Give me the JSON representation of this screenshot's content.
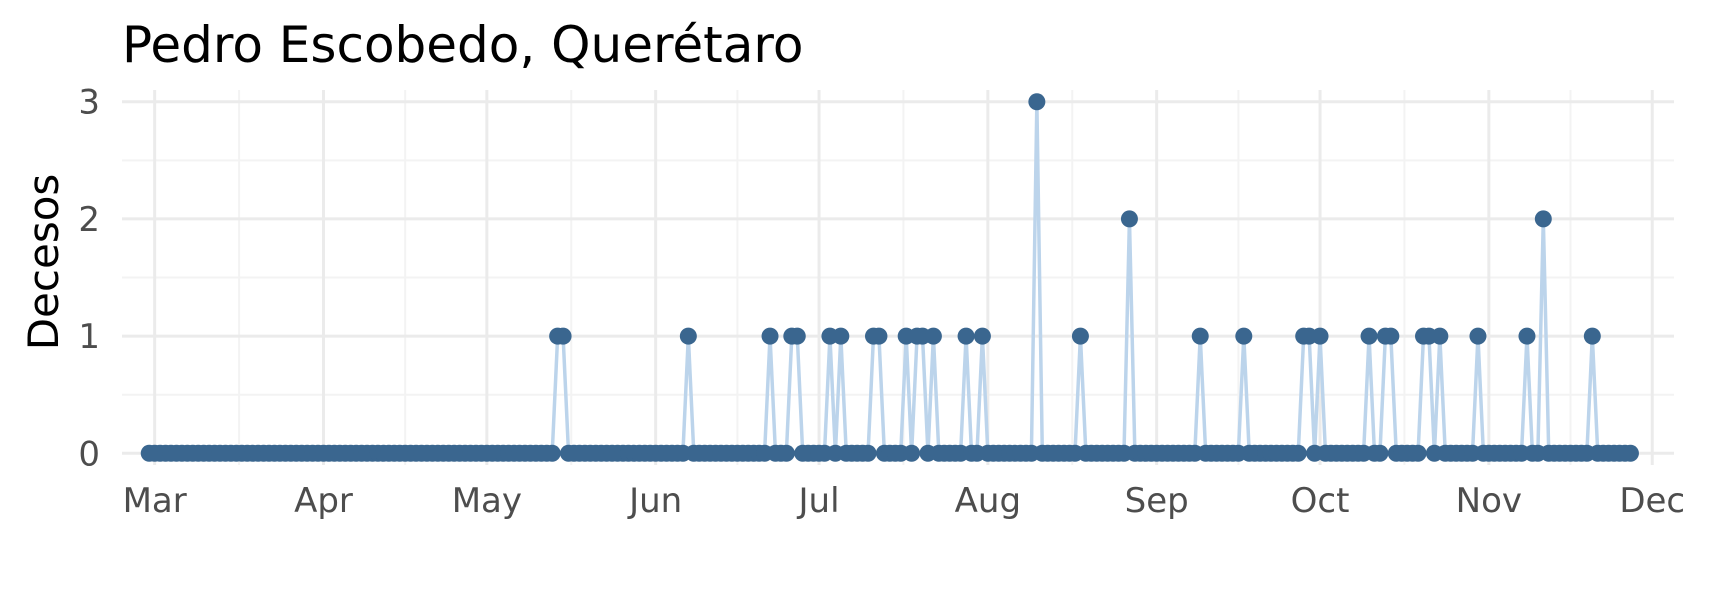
{
  "chart_data": {
    "type": "line",
    "title": "Pedro Escobedo, Querétaro",
    "xlabel": "",
    "ylabel": "Decesos",
    "x_start": "2020-02-29",
    "x_end": "2020-11-27",
    "xlim": [
      "2020-02-24",
      "2020-12-05"
    ],
    "ylim": [
      -0.1,
      3.1
    ],
    "y_ticks": [
      0,
      1,
      2,
      3
    ],
    "x_ticks": [
      {
        "date": "2020-03-01",
        "label": "Mar"
      },
      {
        "date": "2020-04-01",
        "label": "Apr"
      },
      {
        "date": "2020-05-01",
        "label": "May"
      },
      {
        "date": "2020-06-01",
        "label": "Jun"
      },
      {
        "date": "2020-07-01",
        "label": "Jul"
      },
      {
        "date": "2020-08-01",
        "label": "Aug"
      },
      {
        "date": "2020-09-01",
        "label": "Sep"
      },
      {
        "date": "2020-10-01",
        "label": "Oct"
      },
      {
        "date": "2020-11-01",
        "label": "Nov"
      },
      {
        "date": "2020-12-01",
        "label": "Dec"
      }
    ],
    "nonzero_points": [
      {
        "date": "2020-05-14",
        "value": 1
      },
      {
        "date": "2020-05-15",
        "value": 1
      },
      {
        "date": "2020-06-07",
        "value": 1
      },
      {
        "date": "2020-06-22",
        "value": 1
      },
      {
        "date": "2020-06-26",
        "value": 1
      },
      {
        "date": "2020-06-27",
        "value": 1
      },
      {
        "date": "2020-07-03",
        "value": 1
      },
      {
        "date": "2020-07-05",
        "value": 1
      },
      {
        "date": "2020-07-11",
        "value": 1
      },
      {
        "date": "2020-07-12",
        "value": 1
      },
      {
        "date": "2020-07-17",
        "value": 1
      },
      {
        "date": "2020-07-19",
        "value": 1
      },
      {
        "date": "2020-07-20",
        "value": 1
      },
      {
        "date": "2020-07-22",
        "value": 1
      },
      {
        "date": "2020-07-28",
        "value": 1
      },
      {
        "date": "2020-07-31",
        "value": 1
      },
      {
        "date": "2020-08-10",
        "value": 3
      },
      {
        "date": "2020-08-18",
        "value": 1
      },
      {
        "date": "2020-08-27",
        "value": 2
      },
      {
        "date": "2020-09-09",
        "value": 1
      },
      {
        "date": "2020-09-17",
        "value": 1
      },
      {
        "date": "2020-09-28",
        "value": 1
      },
      {
        "date": "2020-09-29",
        "value": 1
      },
      {
        "date": "2020-10-01",
        "value": 1
      },
      {
        "date": "2020-10-10",
        "value": 1
      },
      {
        "date": "2020-10-13",
        "value": 1
      },
      {
        "date": "2020-10-14",
        "value": 1
      },
      {
        "date": "2020-10-20",
        "value": 1
      },
      {
        "date": "2020-10-21",
        "value": 1
      },
      {
        "date": "2020-10-23",
        "value": 1
      },
      {
        "date": "2020-10-30",
        "value": 1
      },
      {
        "date": "2020-11-08",
        "value": 1
      },
      {
        "date": "2020-11-11",
        "value": 2
      },
      {
        "date": "2020-11-20",
        "value": 1
      }
    ],
    "grid": true,
    "legend": "none",
    "colors": {
      "line": "#bcd4eb",
      "points": "#3a668f",
      "grid_major": "#ebebeb",
      "grid_minor": "#f3f3f3",
      "tick_text": "#4d4d4d"
    }
  }
}
